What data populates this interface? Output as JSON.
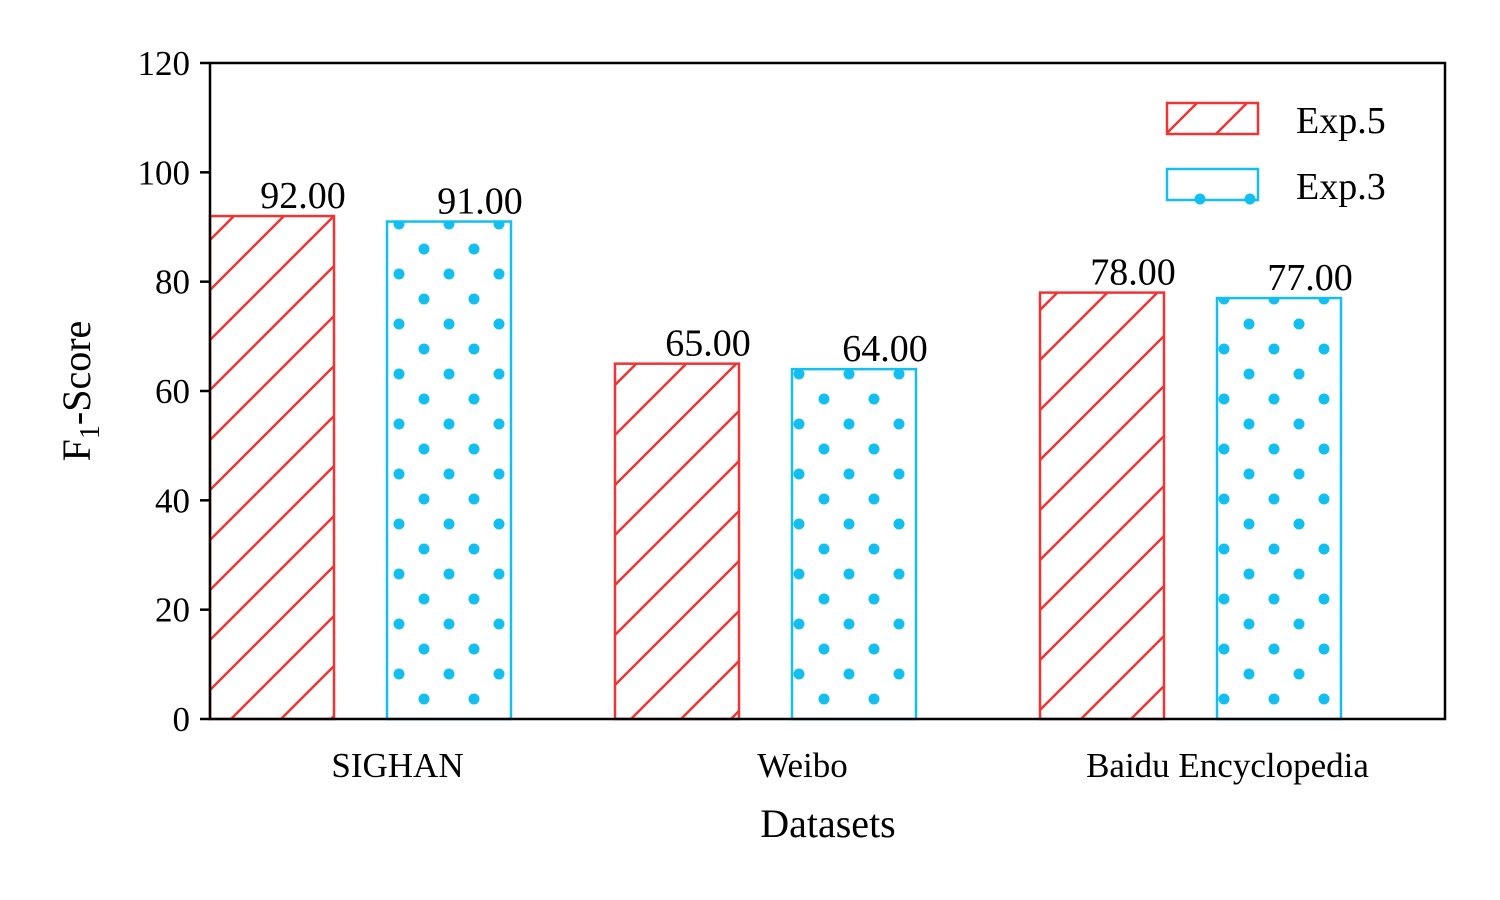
{
  "chart_data": {
    "type": "bar",
    "xlabel": "Datasets",
    "ylabel_main": "F",
    "ylabel_sub": "1",
    "ylabel_rest": "-Score",
    "categories": [
      "SIGHAN",
      "Weibo",
      "Baidu Encyclopedia"
    ],
    "series": [
      {
        "name": "Exp.5",
        "values": [
          92.0,
          65.0,
          78.0
        ],
        "color": "#f03434",
        "pattern": "hatch"
      },
      {
        "name": "Exp.3",
        "values": [
          91.0,
          64.0,
          77.0
        ],
        "color": "#12bff0",
        "pattern": "dots"
      }
    ],
    "value_labels": [
      [
        "92.00",
        "65.00",
        "78.00"
      ],
      [
        "91.00",
        "64.00",
        "77.00"
      ]
    ],
    "ylim": [
      0,
      120
    ],
    "yticks": [
      "0",
      "20",
      "40",
      "60",
      "80",
      "100",
      "120"
    ],
    "grid": false,
    "legend_position": "top-right"
  }
}
